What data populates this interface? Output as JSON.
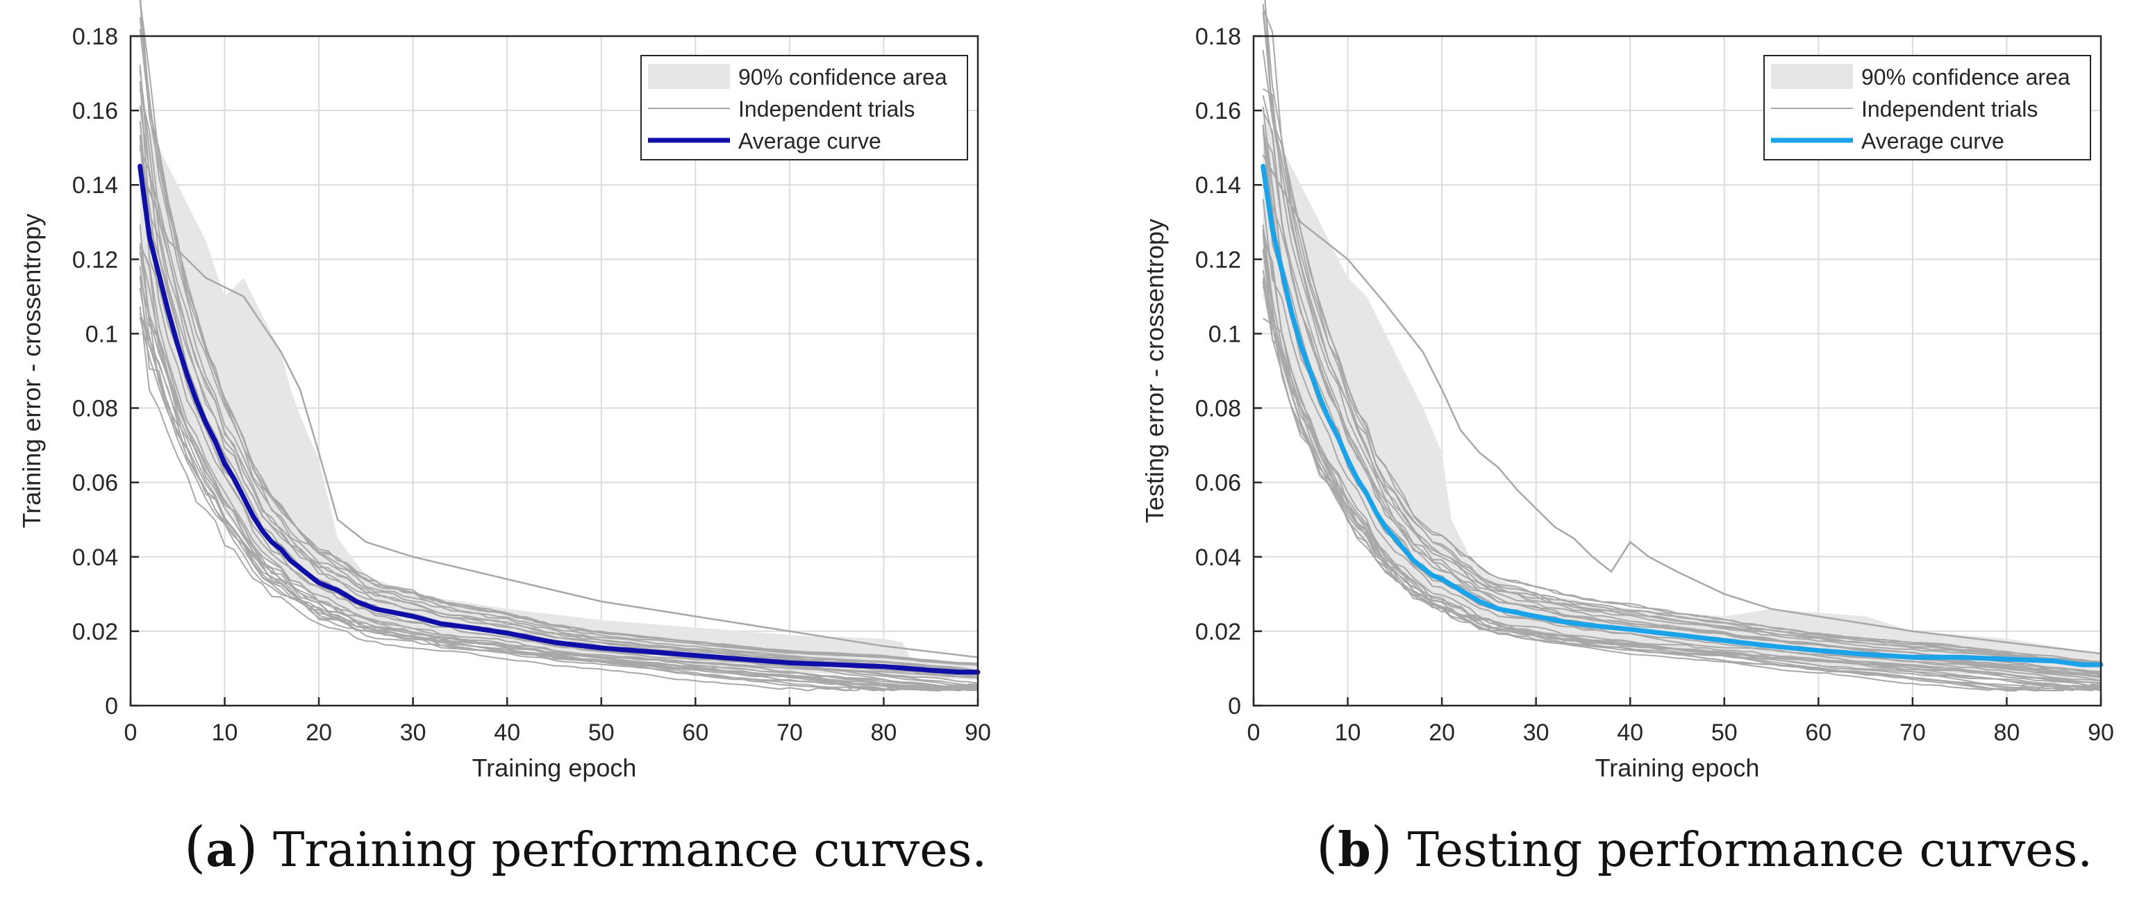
{
  "charts_common": {
    "colors": {
      "trial": "#a8a8a8",
      "band": "#e6e6e6",
      "grid": "#dcdcdc",
      "axis": "#262626",
      "tick_text": "#262626"
    }
  },
  "chart_data": [
    {
      "panel": "a",
      "type": "line",
      "xlabel": "Training epoch",
      "ylabel": "Training error - crossentropy",
      "xlim": [
        0,
        90
      ],
      "ylim": [
        0,
        0.18
      ],
      "xticks": [
        "0",
        "10",
        "20",
        "30",
        "40",
        "50",
        "60",
        "70",
        "80",
        "90"
      ],
      "yticks": [
        "0",
        "0.02",
        "0.04",
        "0.06",
        "0.08",
        "0.1",
        "0.12",
        "0.14",
        "0.16",
        "0.18"
      ],
      "grid": true,
      "legend_position": "top-right",
      "legend": [
        "90% confidence area",
        "Independent trials",
        "Average curve"
      ],
      "average_color": "#0f0fa8",
      "average_curve": {
        "x": [
          1,
          2,
          3,
          4,
          5,
          6,
          7,
          8,
          9,
          10,
          11,
          12,
          13,
          14,
          15,
          16,
          17,
          18,
          19,
          20,
          22,
          24,
          26,
          28,
          30,
          33,
          36,
          40,
          45,
          50,
          55,
          60,
          65,
          70,
          75,
          80,
          85,
          88,
          90
        ],
        "y": [
          0.145,
          0.126,
          0.116,
          0.106,
          0.097,
          0.089,
          0.082,
          0.076,
          0.071,
          0.065,
          0.061,
          0.056,
          0.051,
          0.047,
          0.044,
          0.042,
          0.039,
          0.037,
          0.035,
          0.033,
          0.031,
          0.028,
          0.026,
          0.025,
          0.024,
          0.022,
          0.021,
          0.0195,
          0.017,
          0.0155,
          0.0145,
          0.0135,
          0.0125,
          0.0115,
          0.011,
          0.0105,
          0.0095,
          0.009,
          0.009
        ]
      },
      "confidence_band": {
        "x": [
          1,
          3,
          5,
          8,
          10,
          12,
          14,
          16,
          17,
          18,
          19,
          20,
          22,
          25,
          30,
          35,
          40,
          50,
          60,
          70,
          80,
          82,
          83,
          90
        ],
        "upper": [
          0.16,
          0.15,
          0.14,
          0.125,
          0.11,
          0.115,
          0.105,
          0.095,
          0.085,
          0.078,
          0.072,
          0.066,
          0.045,
          0.035,
          0.03,
          0.028,
          0.026,
          0.023,
          0.021,
          0.019,
          0.018,
          0.017,
          0.012,
          0.011
        ],
        "lower": [
          0.115,
          0.095,
          0.078,
          0.062,
          0.052,
          0.045,
          0.04,
          0.036,
          0.034,
          0.032,
          0.03,
          0.028,
          0.025,
          0.022,
          0.019,
          0.0175,
          0.016,
          0.0135,
          0.011,
          0.009,
          0.008,
          0.0075,
          0.0075,
          0.007
        ]
      },
      "outlier_trial": {
        "x": [
          1,
          4,
          8,
          12,
          16,
          18,
          20,
          22,
          25,
          30,
          35,
          40,
          50,
          60,
          70,
          80,
          90
        ],
        "y": [
          0.145,
          0.125,
          0.115,
          0.11,
          0.095,
          0.085,
          0.068,
          0.05,
          0.044,
          0.04,
          0.037,
          0.034,
          0.028,
          0.024,
          0.02,
          0.016,
          0.013
        ]
      }
    },
    {
      "panel": "b",
      "type": "line",
      "xlabel": "Training epoch",
      "ylabel": "Testing error - crossentropy",
      "xlim": [
        0,
        90
      ],
      "ylim": [
        0,
        0.18
      ],
      "xticks": [
        "0",
        "10",
        "20",
        "30",
        "40",
        "50",
        "60",
        "70",
        "80",
        "90"
      ],
      "yticks": [
        "0",
        "0.02",
        "0.04",
        "0.06",
        "0.08",
        "0.1",
        "0.12",
        "0.14",
        "0.16",
        "0.18"
      ],
      "grid": true,
      "legend_position": "top-right",
      "legend": [
        "90% confidence area",
        "Independent trials",
        "Average curve"
      ],
      "average_color": "#1aa3e8",
      "average_curve": {
        "x": [
          1,
          2,
          3,
          4,
          5,
          6,
          7,
          8,
          9,
          10,
          11,
          12,
          13,
          14,
          15,
          16,
          17,
          18,
          19,
          20,
          22,
          24,
          26,
          28,
          30,
          33,
          36,
          40,
          45,
          50,
          55,
          60,
          65,
          70,
          75,
          80,
          85,
          88,
          90
        ],
        "y": [
          0.145,
          0.128,
          0.117,
          0.106,
          0.097,
          0.09,
          0.083,
          0.077,
          0.072,
          0.066,
          0.061,
          0.057,
          0.052,
          0.048,
          0.045,
          0.042,
          0.039,
          0.037,
          0.035,
          0.034,
          0.031,
          0.028,
          0.026,
          0.025,
          0.024,
          0.0225,
          0.0215,
          0.0205,
          0.019,
          0.0175,
          0.016,
          0.0148,
          0.0138,
          0.013,
          0.013,
          0.0125,
          0.012,
          0.011,
          0.011
        ]
      },
      "confidence_band": {
        "x": [
          1,
          3,
          5,
          8,
          10,
          12,
          14,
          16,
          18,
          19,
          20,
          21,
          23,
          25,
          30,
          35,
          40,
          50,
          55,
          60,
          65,
          70,
          80,
          90
        ],
        "upper": [
          0.158,
          0.15,
          0.14,
          0.125,
          0.115,
          0.11,
          0.1,
          0.09,
          0.08,
          0.074,
          0.068,
          0.05,
          0.04,
          0.035,
          0.03,
          0.028,
          0.026,
          0.024,
          0.026,
          0.025,
          0.024,
          0.02,
          0.018,
          0.014
        ],
        "lower": [
          0.11,
          0.09,
          0.075,
          0.06,
          0.05,
          0.043,
          0.038,
          0.034,
          0.031,
          0.03,
          0.028,
          0.026,
          0.024,
          0.022,
          0.019,
          0.0175,
          0.016,
          0.0135,
          0.0125,
          0.011,
          0.01,
          0.009,
          0.008,
          0.007
        ]
      },
      "outlier_trial": {
        "x": [
          1,
          5,
          10,
          14,
          18,
          20,
          22,
          24,
          26,
          28,
          30,
          32,
          34,
          36,
          38,
          40,
          42,
          45,
          50,
          55,
          60,
          70,
          80,
          90
        ],
        "y": [
          0.148,
          0.13,
          0.12,
          0.108,
          0.095,
          0.085,
          0.074,
          0.068,
          0.064,
          0.058,
          0.053,
          0.048,
          0.045,
          0.04,
          0.036,
          0.044,
          0.04,
          0.036,
          0.03,
          0.026,
          0.024,
          0.02,
          0.017,
          0.014
        ]
      }
    }
  ],
  "captions": {
    "a": {
      "letter": "a",
      "text": "Training performance curves."
    },
    "b": {
      "letter": "b",
      "text": "Testing performance curves."
    }
  }
}
